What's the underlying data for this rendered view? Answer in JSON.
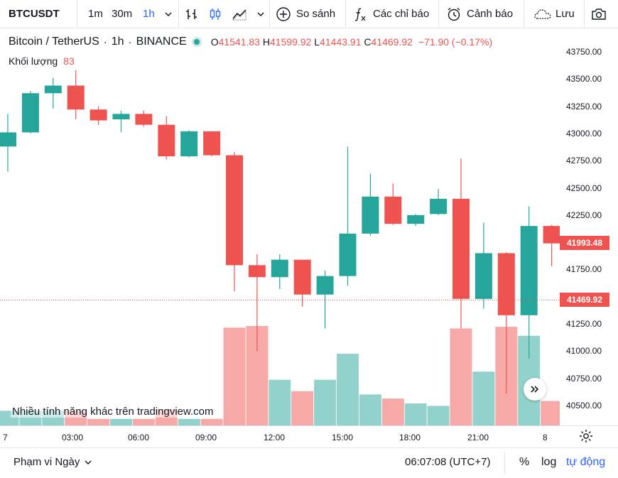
{
  "toolbar": {
    "symbol": "BTCUSDT",
    "intervals": [
      "1m",
      "30m",
      "1h"
    ],
    "active_interval": "1h",
    "compare_label": "So sánh",
    "indicators_label": "Các chỉ báo",
    "alerts_label": "Cảnh báo",
    "save_label": "Lưu"
  },
  "legend": {
    "title": "Bitcoin / TetherUS",
    "interval": "1h",
    "exchange": "BINANCE",
    "o_key": "O",
    "o_val": "41541.83",
    "h_key": "H",
    "h_val": "41599.92",
    "l_key": "L",
    "l_val": "41443.91",
    "c_key": "C",
    "c_val": "41469.92",
    "change": "−71.90 (−0.17%)",
    "volume_label": "Khối lượng",
    "volume_value": "83"
  },
  "price_axis": {
    "ticks": [
      "43750.00",
      "43500.00",
      "43250.00",
      "43000.00",
      "42750.00",
      "42500.00",
      "42250.00",
      "42000.00",
      "41750.00",
      "41500.00",
      "41250.00",
      "41000.00",
      "40750.00",
      "40500.00"
    ],
    "last_price_tag": "41993.48",
    "current_price_tag": "41469.92"
  },
  "time_axis": {
    "ticks": [
      "7",
      "03:00",
      "06:00",
      "09:00",
      "12:00",
      "15:00",
      "18:00",
      "21:00",
      "8"
    ]
  },
  "promo_text": "Nhiều tính năng khác trên tradingview.com",
  "bottom_bar": {
    "range_label": "Phạm vi Ngày",
    "clock": "06:07:08 (UTC+7)",
    "percent_label": "%",
    "log_label": "log",
    "auto_label": "tự động"
  },
  "colors": {
    "up": "#26a69a",
    "down": "#ef5350",
    "up_volume": "#93d2cc",
    "down_volume": "#f7a9a7"
  },
  "chart_data": {
    "type": "candlestick",
    "ylim": [
      40350,
      43850
    ],
    "candles": [
      {
        "o": 42880,
        "h": 43180,
        "l": 42650,
        "c": 43010
      },
      {
        "o": 43010,
        "h": 43390,
        "l": 43000,
        "c": 43370
      },
      {
        "o": 43370,
        "h": 43510,
        "l": 43230,
        "c": 43440
      },
      {
        "o": 43440,
        "h": 43580,
        "l": 43130,
        "c": 43220
      },
      {
        "o": 43220,
        "h": 43250,
        "l": 43080,
        "c": 43120
      },
      {
        "o": 43130,
        "h": 43210,
        "l": 43010,
        "c": 43180
      },
      {
        "o": 43180,
        "h": 43210,
        "l": 43060,
        "c": 43080
      },
      {
        "o": 43080,
        "h": 43160,
        "l": 42760,
        "c": 42790
      },
      {
        "o": 42790,
        "h": 43030,
        "l": 42780,
        "c": 43020
      },
      {
        "o": 43020,
        "h": 43020,
        "l": 42790,
        "c": 42800
      },
      {
        "o": 42800,
        "h": 42830,
        "l": 41550,
        "c": 41790
      },
      {
        "o": 41790,
        "h": 41890,
        "l": 41000,
        "c": 41680
      },
      {
        "o": 41680,
        "h": 41890,
        "l": 41570,
        "c": 41840
      },
      {
        "o": 41840,
        "h": 41840,
        "l": 41410,
        "c": 41520
      },
      {
        "o": 41520,
        "h": 41740,
        "l": 41210,
        "c": 41690
      },
      {
        "o": 41690,
        "h": 42880,
        "l": 41600,
        "c": 42080
      },
      {
        "o": 42080,
        "h": 42630,
        "l": 42060,
        "c": 42420
      },
      {
        "o": 42420,
        "h": 42540,
        "l": 42160,
        "c": 42170
      },
      {
        "o": 42170,
        "h": 42260,
        "l": 42150,
        "c": 42250
      },
      {
        "o": 42260,
        "h": 42490,
        "l": 42250,
        "c": 42400
      },
      {
        "o": 42400,
        "h": 42770,
        "l": 41210,
        "c": 41480
      },
      {
        "o": 41480,
        "h": 42180,
        "l": 41390,
        "c": 41900
      },
      {
        "o": 41900,
        "h": 41910,
        "l": 40610,
        "c": 41330
      },
      {
        "o": 41330,
        "h": 42330,
        "l": 40930,
        "c": 42150
      },
      {
        "o": 42150,
        "h": 42160,
        "l": 41780,
        "c": 41990
      }
    ],
    "volume_max": 2000,
    "volumes": [
      180,
      180,
      180,
      180,
      80,
      80,
      80,
      200,
      80,
      80,
      1200,
      1220,
      560,
      420,
      560,
      880,
      380,
      330,
      270,
      240,
      1190,
      660,
      1210,
      1100,
      300
    ]
  }
}
